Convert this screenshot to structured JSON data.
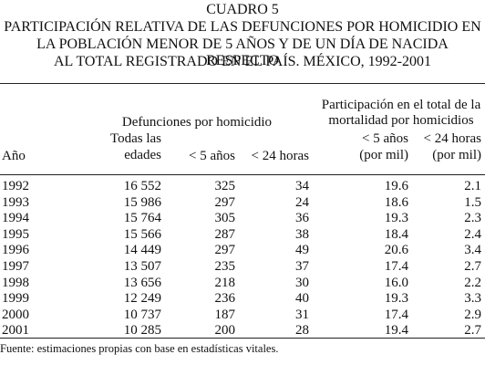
{
  "title": {
    "line1": "CUADRO 5",
    "line2": "PARTICIPACIÓN RELATIVA DE LAS DEFUNCIONES POR HOMICIDIO EN",
    "line3": "LA POBLACIÓN MENOR DE 5 AÑOS Y DE UN DÍA DE NACIDA RESPECTO",
    "line4": "AL TOTAL REGISTRADO EN EL PAÍS. MÉXICO, 1992-2001"
  },
  "header": {
    "group_defunciones": "Defunciones por homicidio",
    "group_participacion_l1": "Participación en el total de la",
    "group_participacion_l2": "mortalidad por homicidios",
    "col_year": "Año",
    "col_todas_l1": "Todas las",
    "col_todas_l2": "edades",
    "col_menor5": "< 5 años",
    "col_24h": "< 24 horas",
    "col_p5_l1": "< 5 años",
    "col_p5_l2": "(por mil)",
    "col_p24_l1": "< 24 horas",
    "col_p24_l2": "(por mil)"
  },
  "rows": [
    {
      "year": "1992",
      "todas": "16 552",
      "menor5": "325",
      "h24": "34",
      "p5": "19.6",
      "p24": "2.1"
    },
    {
      "year": "1993",
      "todas": "15 986",
      "menor5": "297",
      "h24": "24",
      "p5": "18.6",
      "p24": "1.5"
    },
    {
      "year": "1994",
      "todas": "15 764",
      "menor5": "305",
      "h24": "36",
      "p5": "19.3",
      "p24": "2.3"
    },
    {
      "year": "1995",
      "todas": "15 566",
      "menor5": "287",
      "h24": "38",
      "p5": "18.4",
      "p24": "2.4"
    },
    {
      "year": "1996",
      "todas": "14 449",
      "menor5": "297",
      "h24": "49",
      "p5": "20.6",
      "p24": "3.4"
    },
    {
      "year": "1997",
      "todas": "13 507",
      "menor5": "235",
      "h24": "37",
      "p5": "17.4",
      "p24": "2.7"
    },
    {
      "year": "1998",
      "todas": "13 656",
      "menor5": "218",
      "h24": "30",
      "p5": "16.0",
      "p24": "2.2"
    },
    {
      "year": "1999",
      "todas": "12 249",
      "menor5": "236",
      "h24": "40",
      "p5": "19.3",
      "p24": "3.3"
    },
    {
      "year": "2000",
      "todas": "10 737",
      "menor5": "187",
      "h24": "31",
      "p5": "17.4",
      "p24": "2.9"
    },
    {
      "year": "2001",
      "todas": "10 285",
      "menor5": "200",
      "h24": "28",
      "p5": "19.4",
      "p24": "2.7"
    }
  ],
  "source": "Fuente: estimaciones propias con base en estadísticas vitales."
}
